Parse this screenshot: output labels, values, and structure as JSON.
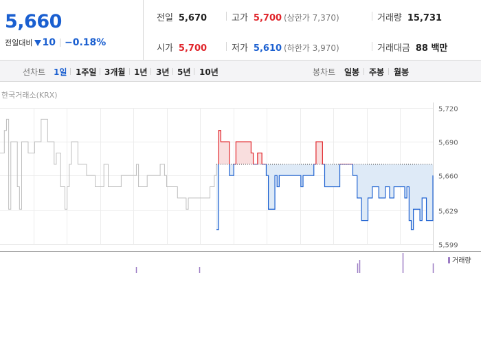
{
  "quote": {
    "price": "5,660",
    "change_label": "전일대비",
    "change_amount": "10",
    "change_pct": "−0.18%"
  },
  "stats": {
    "prev_close": {
      "label": "전일",
      "value": "5,670"
    },
    "high": {
      "label": "고가",
      "value": "5,700",
      "sub": "(상한가 7,370)"
    },
    "volume": {
      "label": "거래량",
      "value": "15,731"
    },
    "open": {
      "label": "시가",
      "value": "5,700"
    },
    "low": {
      "label": "저가",
      "value": "5,610",
      "sub": "(하한가 3,970)"
    },
    "trade_value": {
      "label": "거래대금",
      "value": "88 백만"
    }
  },
  "periods": {
    "line_label": "선차트",
    "line_items": [
      "1일",
      "1주일",
      "3개월",
      "1년",
      "3년",
      "5년",
      "10년"
    ],
    "line_active": "1일",
    "candle_label": "봉차트",
    "candle_items": [
      "일봉",
      "주봉",
      "월봉"
    ]
  },
  "chart_source": "한국거래소(KRX)",
  "volume_legend": "거래량",
  "colors": {
    "up": "#e0242a",
    "down": "#1a5fd0",
    "baseline": "#333333"
  },
  "chart_data": {
    "type": "line",
    "title": "",
    "y_ticks": [
      "5,720",
      "5,690",
      "5,660",
      "5,629",
      "5,599"
    ],
    "ylim": [
      5599,
      5720
    ],
    "baseline": 5670,
    "series": [
      {
        "name": "previous",
        "points": [
          [
            0,
            5680
          ],
          [
            2,
            5700
          ],
          [
            3,
            5710
          ],
          [
            4,
            5630
          ],
          [
            5,
            5690
          ],
          [
            8,
            5650
          ],
          [
            9,
            5630
          ],
          [
            10,
            5690
          ],
          [
            13,
            5680
          ],
          [
            16,
            5690
          ],
          [
            19,
            5710
          ],
          [
            22,
            5690
          ],
          [
            25,
            5670
          ],
          [
            26,
            5680
          ],
          [
            28,
            5650
          ],
          [
            30,
            5630
          ],
          [
            31,
            5650
          ],
          [
            32,
            5670
          ],
          [
            33,
            5690
          ],
          [
            36,
            5670
          ],
          [
            37,
            5670
          ],
          [
            40,
            5660
          ],
          [
            44,
            5650
          ],
          [
            45,
            5650
          ],
          [
            48,
            5670
          ],
          [
            50,
            5650
          ],
          [
            52,
            5650
          ],
          [
            56,
            5660
          ],
          [
            60,
            5660
          ],
          [
            63,
            5670
          ],
          [
            64,
            5650
          ],
          [
            68,
            5660
          ],
          [
            71,
            5660
          ],
          [
            74,
            5670
          ],
          [
            76,
            5660
          ],
          [
            77,
            5650
          ],
          [
            80,
            5650
          ],
          [
            82,
            5640
          ],
          [
            85,
            5640
          ],
          [
            86,
            5630
          ],
          [
            87,
            5640
          ],
          [
            88,
            5640
          ],
          [
            91,
            5640
          ],
          [
            93,
            5640
          ],
          [
            96,
            5640
          ],
          [
            97,
            5650
          ],
          [
            99,
            5660
          ],
          [
            100,
            5670
          ]
        ]
      },
      {
        "name": "today",
        "points": [
          [
            100,
            5612
          ],
          [
            101,
            5700
          ],
          [
            102,
            5690
          ],
          [
            106,
            5660
          ],
          [
            107,
            5660
          ],
          [
            108,
            5670
          ],
          [
            109,
            5690
          ],
          [
            116,
            5680
          ],
          [
            117,
            5670
          ],
          [
            119,
            5680
          ],
          [
            121,
            5670
          ],
          [
            123,
            5660
          ],
          [
            124,
            5630
          ],
          [
            127,
            5660
          ],
          [
            128,
            5650
          ],
          [
            129,
            5660
          ],
          [
            139,
            5650
          ],
          [
            140,
            5660
          ],
          [
            145,
            5670
          ],
          [
            146,
            5690
          ],
          [
            149,
            5670
          ],
          [
            150,
            5650
          ],
          [
            152,
            5650
          ],
          [
            157,
            5670
          ],
          [
            160,
            5670
          ],
          [
            163,
            5660
          ],
          [
            165,
            5640
          ],
          [
            167,
            5620
          ],
          [
            170,
            5640
          ],
          [
            172,
            5650
          ],
          [
            175,
            5640
          ],
          [
            178,
            5650
          ],
          [
            180,
            5640
          ],
          [
            182,
            5650
          ],
          [
            187,
            5640
          ],
          [
            188,
            5650
          ],
          [
            189,
            5620
          ],
          [
            190,
            5612
          ],
          [
            191,
            5630
          ],
          [
            194,
            5620
          ],
          [
            195,
            5640
          ],
          [
            197,
            5620
          ],
          [
            200,
            5660
          ]
        ]
      }
    ],
    "volume": [
      [
        63,
        1
      ],
      [
        92,
        1
      ],
      [
        165,
        2
      ],
      [
        166,
        3
      ],
      [
        186,
        5
      ],
      [
        200,
        2
      ]
    ]
  }
}
